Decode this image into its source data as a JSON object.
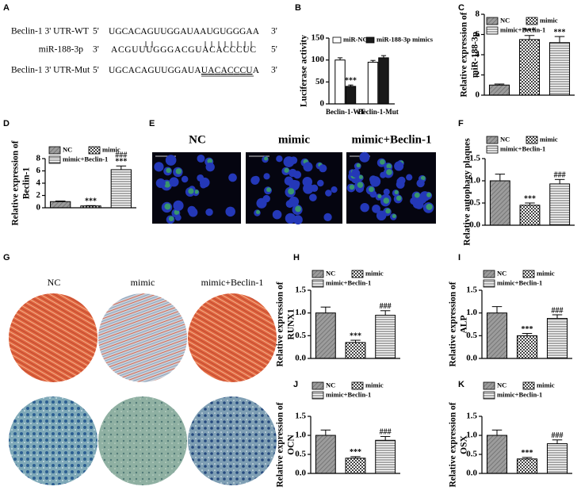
{
  "panel_letters": [
    "A",
    "B",
    "C",
    "D",
    "E",
    "F",
    "G",
    "H",
    "I",
    "J",
    "K"
  ],
  "sequence_alignment": {
    "rows": [
      {
        "name": "Beclin-1 3' UTR-WT",
        "left": "5'",
        "seq": [
          "UGCACAGUUGGAUAAUGUGGGAA"
        ],
        "right": "3'"
      },
      {
        "name": "miR-188-3p",
        "left": "3'",
        "seq": [
          "ACGUUUGGGACGUACACCCUC"
        ],
        "right": "5'"
      },
      {
        "name": "Beclin-1 3' UTR-Mut",
        "left": "5'",
        "seq": [
          "UGCACAGUUGGAUA",
          "UACACCCU",
          "A"
        ],
        "right": "3'"
      }
    ]
  },
  "fluorescence_panel": {
    "labels": [
      "NC",
      "mimic",
      "mimic+Beclin-1"
    ]
  },
  "staining_panel": {
    "labels": [
      "NC",
      "mimic",
      "mimic+Beclin-1"
    ]
  },
  "chart_data": [
    {
      "type": "bar",
      "ylabel": "Luciferase activity",
      "categories": [
        "Beclin-1-WT",
        "Beclin-1-Mut"
      ],
      "series": [
        {
          "name": "miR-NC",
          "color": "#ffffff",
          "values": [
            100,
            95
          ],
          "errors": [
            5,
            4
          ]
        },
        {
          "name": "miR-188-3p mimics",
          "color": "#1a1a1a",
          "values": [
            40,
            105
          ],
          "errors": [
            3,
            5
          ],
          "annotations": [
            [
              "***"
            ],
            null
          ]
        }
      ],
      "ylim": [
        0,
        150
      ],
      "yticks": [
        0,
        50,
        100,
        150
      ]
    },
    {
      "type": "bar",
      "ylabel": [
        "Relative expression of",
        "miR-188-3p"
      ],
      "categories": [
        null
      ],
      "series": [
        {
          "name": "NC",
          "hatch": "diagonal",
          "values": [
            1.0
          ],
          "errors": [
            0.1
          ]
        },
        {
          "name": "mimic",
          "hatch": "checker",
          "values": [
            5.5
          ],
          "errors": [
            0.4
          ],
          "annotations": [
            [
              "***"
            ]
          ]
        },
        {
          "name": "mimic+Beclin-1",
          "hatch": "horizontal",
          "values": [
            5.2
          ],
          "errors": [
            0.6
          ],
          "annotations": [
            [
              "***"
            ]
          ]
        }
      ],
      "ylim": [
        0,
        8
      ],
      "yticks": [
        0,
        2,
        4,
        6,
        8
      ]
    },
    {
      "type": "bar",
      "ylabel": [
        "Relative expression of",
        "Beclin-1"
      ],
      "categories": [
        null
      ],
      "series": [
        {
          "name": "NC",
          "hatch": "diagonal",
          "values": [
            1.0
          ],
          "errors": [
            0.1
          ]
        },
        {
          "name": "mimic",
          "hatch": "checker",
          "values": [
            0.3
          ],
          "errors": [
            0.05
          ],
          "annotations": [
            [
              "***"
            ]
          ]
        },
        {
          "name": "mimic+Beclin-1",
          "hatch": "horizontal",
          "values": [
            6.2
          ],
          "errors": [
            0.6
          ],
          "annotations": [
            [
              "***",
              "###"
            ]
          ]
        }
      ],
      "ylim": [
        0,
        8
      ],
      "yticks": [
        0,
        2,
        4,
        6,
        8
      ]
    },
    {
      "type": "bar",
      "ylabel": "Relative autophagy plaques",
      "categories": [
        null
      ],
      "series": [
        {
          "name": "NC",
          "hatch": "diagonal",
          "values": [
            1.0
          ],
          "errors": [
            0.15
          ]
        },
        {
          "name": "mimic",
          "hatch": "checker",
          "values": [
            0.45
          ],
          "errors": [
            0.05
          ],
          "annotations": [
            [
              "***"
            ]
          ]
        },
        {
          "name": "mimic+Beclin-1",
          "hatch": "horizontal",
          "values": [
            0.93
          ],
          "errors": [
            0.1
          ],
          "annotations": [
            [
              "###"
            ]
          ]
        }
      ],
      "ylim": [
        0,
        1.5
      ],
      "yticks": [
        {
          "value": 0,
          "label": "0.0"
        },
        0.5,
        {
          "value": 1,
          "label": "1.0"
        },
        1.5
      ]
    },
    {
      "type": "bar",
      "ylabel": [
        "Relative expression of",
        "RUNX1"
      ],
      "categories": [
        null
      ],
      "series": [
        {
          "name": "NC",
          "hatch": "diagonal",
          "values": [
            1.0
          ],
          "errors": [
            0.13
          ]
        },
        {
          "name": "mimic",
          "hatch": "checker",
          "values": [
            0.35
          ],
          "errors": [
            0.05
          ],
          "annotations": [
            [
              "***"
            ]
          ]
        },
        {
          "name": "mimic+Beclin-1",
          "hatch": "horizontal",
          "values": [
            0.95
          ],
          "errors": [
            0.1
          ],
          "annotations": [
            [
              "###"
            ]
          ]
        }
      ],
      "ylim": [
        0,
        1.5
      ],
      "yticks": [
        {
          "value": 0,
          "label": "0.0"
        },
        0.5,
        {
          "value": 1,
          "label": "1.0"
        },
        1.5
      ]
    },
    {
      "type": "bar",
      "ylabel": [
        "Relative expression of",
        "ALP"
      ],
      "categories": [
        null
      ],
      "series": [
        {
          "name": "NC",
          "hatch": "diagonal",
          "values": [
            1.0
          ],
          "errors": [
            0.14
          ]
        },
        {
          "name": "mimic",
          "hatch": "checker",
          "values": [
            0.5
          ],
          "errors": [
            0.05
          ],
          "annotations": [
            [
              "***"
            ]
          ]
        },
        {
          "name": "mimic+Beclin-1",
          "hatch": "horizontal",
          "values": [
            0.88
          ],
          "errors": [
            0.08
          ],
          "annotations": [
            [
              "###"
            ]
          ]
        }
      ],
      "ylim": [
        0,
        1.5
      ],
      "yticks": [
        {
          "value": 0,
          "label": "0.0"
        },
        0.5,
        {
          "value": 1,
          "label": "1.0"
        },
        1.5
      ]
    },
    {
      "type": "bar",
      "ylabel": [
        "Relative expression of",
        "OCN"
      ],
      "categories": [
        null
      ],
      "series": [
        {
          "name": "NC",
          "hatch": "diagonal",
          "values": [
            1.0
          ],
          "errors": [
            0.14
          ]
        },
        {
          "name": "mimic",
          "hatch": "checker",
          "values": [
            0.4
          ],
          "errors": [
            0.04
          ],
          "annotations": [
            [
              "***"
            ]
          ]
        },
        {
          "name": "mimic+Beclin-1",
          "hatch": "horizontal",
          "values": [
            0.87
          ],
          "errors": [
            0.1
          ],
          "annotations": [
            [
              "###"
            ]
          ]
        }
      ],
      "ylim": [
        0,
        1.5
      ],
      "yticks": [
        {
          "value": 0,
          "label": "0.0"
        },
        0.5,
        {
          "value": 1,
          "label": "1.0"
        },
        1.5
      ]
    },
    {
      "type": "bar",
      "ylabel": [
        "Relative expression of",
        "OSX"
      ],
      "categories": [
        null
      ],
      "series": [
        {
          "name": "NC",
          "hatch": "diagonal",
          "values": [
            1.0
          ],
          "errors": [
            0.14
          ]
        },
        {
          "name": "mimic",
          "hatch": "checker",
          "values": [
            0.38
          ],
          "errors": [
            0.04
          ],
          "annotations": [
            [
              "***"
            ]
          ]
        },
        {
          "name": "mimic+Beclin-1",
          "hatch": "horizontal",
          "values": [
            0.78
          ],
          "errors": [
            0.1
          ],
          "annotations": [
            [
              "###"
            ]
          ]
        }
      ],
      "ylim": [
        0,
        1.5
      ],
      "yticks": [
        {
          "value": 0,
          "label": "0.0"
        },
        0.5,
        {
          "value": 1,
          "label": "1.0"
        },
        1.5
      ]
    }
  ]
}
